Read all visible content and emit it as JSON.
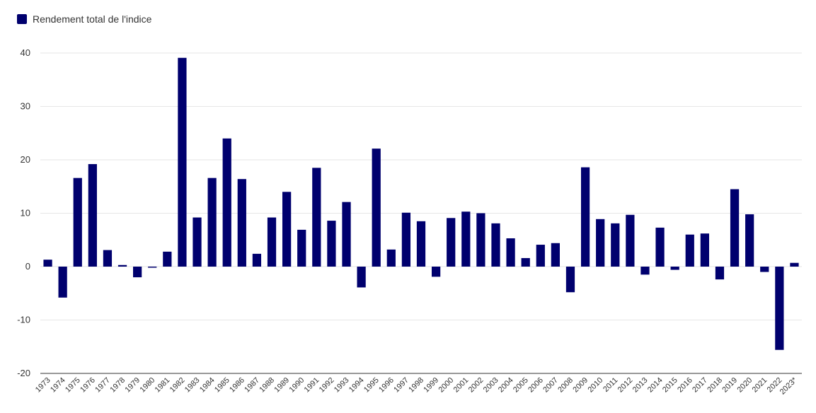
{
  "chart_data": {
    "type": "bar",
    "title": "",
    "xlabel": "",
    "ylabel": "",
    "legend_position": "top-left",
    "grid": true,
    "ylim": [
      -20,
      40
    ],
    "yticks": [
      40,
      30,
      20,
      10,
      0,
      -10,
      -20
    ],
    "bar_color": "#00006e",
    "categories": [
      "1973",
      "1974",
      "1975",
      "1976",
      "1977",
      "1978",
      "1979",
      "1980",
      "1981",
      "1982",
      "1983",
      "1984",
      "1985",
      "1986",
      "1987",
      "1988",
      "1989",
      "1990",
      "1991",
      "1992",
      "1993",
      "1994",
      "1995",
      "1996",
      "1997",
      "1998",
      "1999",
      "2000",
      "2001",
      "2002",
      "2003",
      "2004",
      "2005",
      "2006",
      "2007",
      "2008",
      "2009",
      "2010",
      "2011",
      "2012",
      "2013",
      "2014",
      "2015",
      "2016",
      "2017",
      "2018",
      "2019",
      "2020",
      "2021",
      "2022",
      "2023*"
    ],
    "series": [
      {
        "name": "Rendement total de l'indice",
        "values": [
          1.3,
          -5.8,
          16.6,
          19.2,
          3.1,
          0.3,
          -2.0,
          -0.2,
          2.8,
          39.1,
          9.2,
          16.6,
          24.0,
          16.4,
          2.4,
          9.2,
          14.0,
          6.9,
          18.5,
          8.6,
          12.1,
          -3.9,
          22.1,
          3.2,
          10.1,
          8.5,
          -1.9,
          9.1,
          10.3,
          10.0,
          8.1,
          5.3,
          1.6,
          4.1,
          4.4,
          -4.8,
          18.6,
          8.9,
          8.1,
          9.7,
          -1.5,
          7.3,
          -0.6,
          6.0,
          6.2,
          -2.4,
          14.5,
          9.8,
          -1.0,
          -15.6,
          0.7
        ]
      }
    ]
  }
}
